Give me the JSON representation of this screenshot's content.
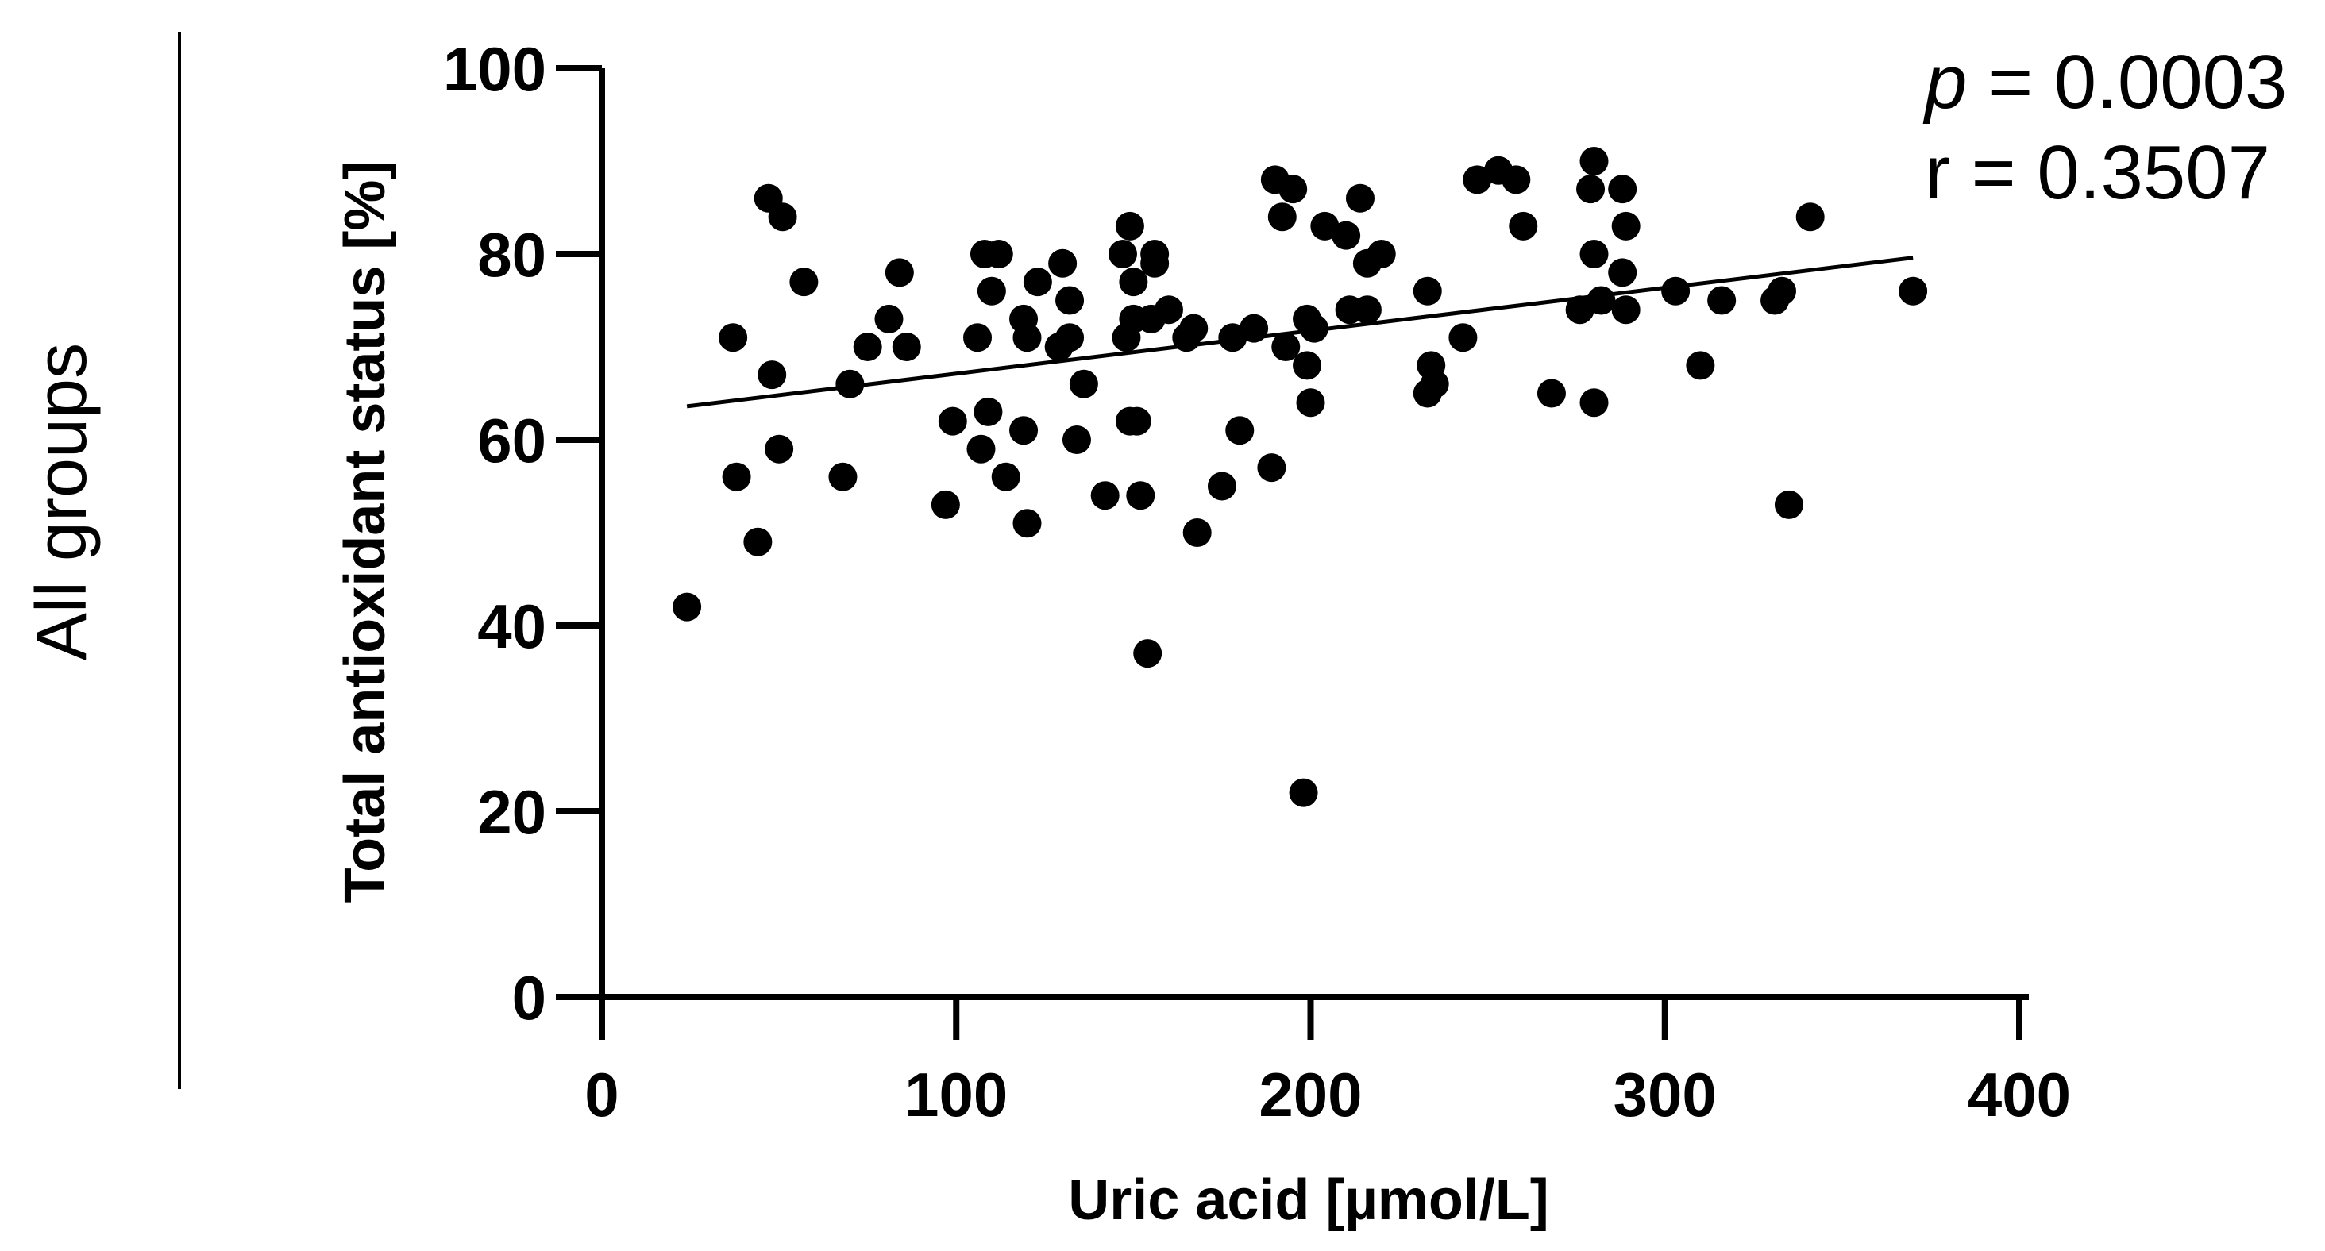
{
  "group_label": "All groups",
  "stats": {
    "p_symbol": "p",
    "p_rest": " = 0.0003",
    "r_text": "r = 0.3507"
  },
  "chart_data": {
    "type": "scatter",
    "title": "",
    "xlabel": "Uric acid [µmol/L]",
    "ylabel": "Total antioxidant status [%]",
    "xlim": [
      0,
      400
    ],
    "ylim": [
      0,
      100
    ],
    "x_ticks": [
      0,
      100,
      200,
      300,
      400
    ],
    "y_ticks": [
      0,
      20,
      40,
      60,
      80,
      100
    ],
    "grid": false,
    "legend": false,
    "marker_color": "#000000",
    "points": [
      {
        "x": 24,
        "y": 42
      },
      {
        "x": 37,
        "y": 71
      },
      {
        "x": 38,
        "y": 56
      },
      {
        "x": 44,
        "y": 49
      },
      {
        "x": 47,
        "y": 86
      },
      {
        "x": 48,
        "y": 67
      },
      {
        "x": 50,
        "y": 59
      },
      {
        "x": 51,
        "y": 84
      },
      {
        "x": 57,
        "y": 77
      },
      {
        "x": 68,
        "y": 56
      },
      {
        "x": 70,
        "y": 66
      },
      {
        "x": 75,
        "y": 70
      },
      {
        "x": 81,
        "y": 73
      },
      {
        "x": 84,
        "y": 78
      },
      {
        "x": 86,
        "y": 70
      },
      {
        "x": 97,
        "y": 53
      },
      {
        "x": 99,
        "y": 62
      },
      {
        "x": 106,
        "y": 71
      },
      {
        "x": 107,
        "y": 59
      },
      {
        "x": 108,
        "y": 80
      },
      {
        "x": 109,
        "y": 63
      },
      {
        "x": 110,
        "y": 76
      },
      {
        "x": 112,
        "y": 80
      },
      {
        "x": 114,
        "y": 56
      },
      {
        "x": 119,
        "y": 73
      },
      {
        "x": 119,
        "y": 61
      },
      {
        "x": 120,
        "y": 71
      },
      {
        "x": 120,
        "y": 51
      },
      {
        "x": 123,
        "y": 77
      },
      {
        "x": 129,
        "y": 70
      },
      {
        "x": 130,
        "y": 79
      },
      {
        "x": 132,
        "y": 75
      },
      {
        "x": 132,
        "y": 71
      },
      {
        "x": 134,
        "y": 60
      },
      {
        "x": 136,
        "y": 66
      },
      {
        "x": 142,
        "y": 54
      },
      {
        "x": 147,
        "y": 80
      },
      {
        "x": 148,
        "y": 71
      },
      {
        "x": 149,
        "y": 62
      },
      {
        "x": 149,
        "y": 83
      },
      {
        "x": 150,
        "y": 77
      },
      {
        "x": 150,
        "y": 73
      },
      {
        "x": 151,
        "y": 62
      },
      {
        "x": 152,
        "y": 54
      },
      {
        "x": 154,
        "y": 37
      },
      {
        "x": 155,
        "y": 73
      },
      {
        "x": 156,
        "y": 79
      },
      {
        "x": 156,
        "y": 80
      },
      {
        "x": 160,
        "y": 74
      },
      {
        "x": 165,
        "y": 71
      },
      {
        "x": 167,
        "y": 72
      },
      {
        "x": 168,
        "y": 50
      },
      {
        "x": 175,
        "y": 55
      },
      {
        "x": 178,
        "y": 71
      },
      {
        "x": 180,
        "y": 61
      },
      {
        "x": 184,
        "y": 72
      },
      {
        "x": 189,
        "y": 57
      },
      {
        "x": 190,
        "y": 88
      },
      {
        "x": 192,
        "y": 84
      },
      {
        "x": 193,
        "y": 70
      },
      {
        "x": 195,
        "y": 87
      },
      {
        "x": 198,
        "y": 22
      },
      {
        "x": 199,
        "y": 73
      },
      {
        "x": 199,
        "y": 68
      },
      {
        "x": 200,
        "y": 64
      },
      {
        "x": 201,
        "y": 72
      },
      {
        "x": 204,
        "y": 83
      },
      {
        "x": 210,
        "y": 82
      },
      {
        "x": 211,
        "y": 74
      },
      {
        "x": 214,
        "y": 86
      },
      {
        "x": 216,
        "y": 74
      },
      {
        "x": 216,
        "y": 79
      },
      {
        "x": 220,
        "y": 80
      },
      {
        "x": 233,
        "y": 76
      },
      {
        "x": 233,
        "y": 65
      },
      {
        "x": 234,
        "y": 68
      },
      {
        "x": 235,
        "y": 66
      },
      {
        "x": 243,
        "y": 71
      },
      {
        "x": 247,
        "y": 88
      },
      {
        "x": 253,
        "y": 89
      },
      {
        "x": 258,
        "y": 88
      },
      {
        "x": 260,
        "y": 83
      },
      {
        "x": 268,
        "y": 65
      },
      {
        "x": 276,
        "y": 74
      },
      {
        "x": 279,
        "y": 87
      },
      {
        "x": 280,
        "y": 90
      },
      {
        "x": 280,
        "y": 80
      },
      {
        "x": 280,
        "y": 64
      },
      {
        "x": 282,
        "y": 75
      },
      {
        "x": 288,
        "y": 87
      },
      {
        "x": 288,
        "y": 78
      },
      {
        "x": 289,
        "y": 74
      },
      {
        "x": 289,
        "y": 83
      },
      {
        "x": 303,
        "y": 76
      },
      {
        "x": 310,
        "y": 68
      },
      {
        "x": 316,
        "y": 75
      },
      {
        "x": 331,
        "y": 75
      },
      {
        "x": 333,
        "y": 76
      },
      {
        "x": 335,
        "y": 53
      },
      {
        "x": 341,
        "y": 84
      },
      {
        "x": 370,
        "y": 76
      }
    ],
    "regression_line": {
      "x": [
        24,
        370
      ],
      "y": [
        63.6,
        79.6
      ]
    }
  }
}
